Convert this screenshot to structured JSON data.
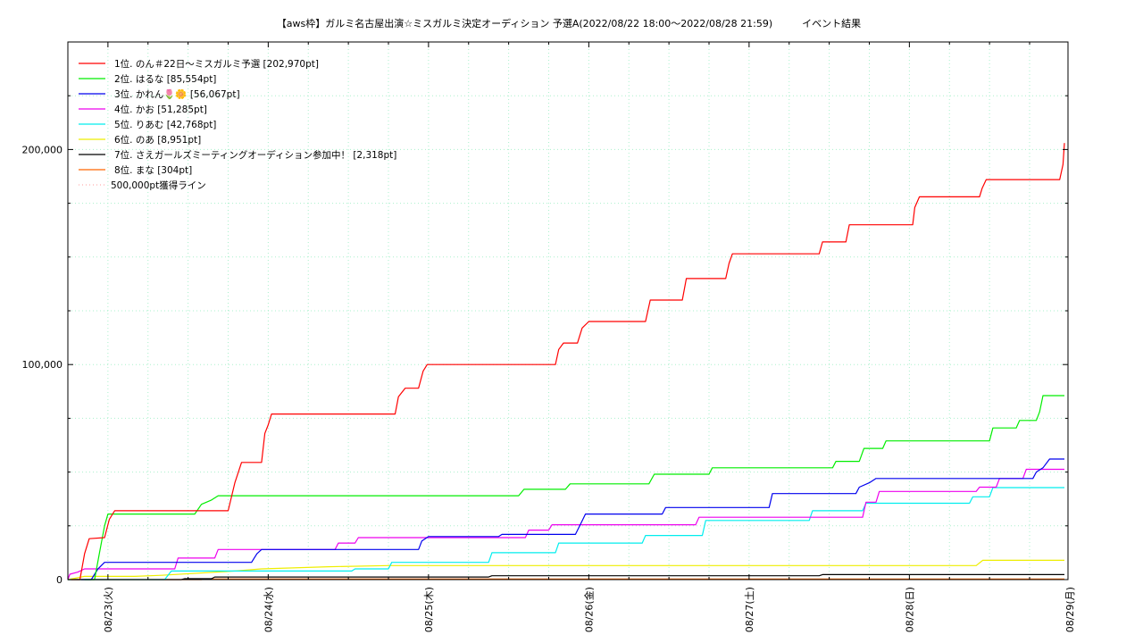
{
  "chart_data": {
    "type": "line",
    "title": "【aws枠】ガルミ名古屋出演☆ミスガルミ決定オーディション 予選A(2022/08/22 18:00～2022/08/28 21:59)　　　イベント結果",
    "xlabel": "",
    "ylabel": "",
    "ylim": [
      0,
      250000
    ],
    "xlim": [
      0,
      149.75
    ],
    "x_unit": "hours since 2022/08/22 18:00",
    "y_ticks": [
      {
        "value": 0,
        "label": "0"
      },
      {
        "value": 100000,
        "label": "100,000"
      },
      {
        "value": 200000,
        "label": "200,000"
      }
    ],
    "x_ticks": [
      {
        "value": 6,
        "label": "08/23(火)"
      },
      {
        "value": 30,
        "label": "08/24(水)"
      },
      {
        "value": 54,
        "label": "08/25(木)"
      },
      {
        "value": 78,
        "label": "08/26(金)"
      },
      {
        "value": 102,
        "label": "08/27(土)"
      },
      {
        "value": 126,
        "label": "08/28(日)"
      },
      {
        "value": 150,
        "label": "08/29(月)"
      }
    ],
    "grid": true,
    "legend_position": "top-left",
    "series": [
      {
        "name": "1位. のん＃22日〜ミスガルミ予選 [202,970pt]",
        "color": "#ff0000",
        "points": [
          [
            0.5,
            0
          ],
          [
            1.8,
            0
          ],
          [
            2.5,
            12000
          ],
          [
            3.2,
            19000
          ],
          [
            5.5,
            19500
          ],
          [
            6.2,
            28000
          ],
          [
            7,
            32000
          ],
          [
            24,
            32000
          ],
          [
            25,
            45000
          ],
          [
            26,
            54500
          ],
          [
            29,
            54500
          ],
          [
            29.5,
            68000
          ],
          [
            30,
            72000
          ],
          [
            30.5,
            77000
          ],
          [
            49,
            77000
          ],
          [
            49.5,
            85000
          ],
          [
            50.5,
            89000
          ],
          [
            52.5,
            89000
          ],
          [
            53.2,
            97000
          ],
          [
            53.8,
            100000
          ],
          [
            73,
            100000
          ],
          [
            73.5,
            107000
          ],
          [
            74.2,
            110000
          ],
          [
            76.3,
            110000
          ],
          [
            77,
            117000
          ],
          [
            78,
            120000
          ],
          [
            86.5,
            120000
          ],
          [
            87.2,
            130000
          ],
          [
            92,
            130000
          ],
          [
            92.6,
            140000
          ],
          [
            98.5,
            140000
          ],
          [
            99,
            147000
          ],
          [
            99.5,
            151500
          ],
          [
            112.5,
            151500
          ],
          [
            113,
            157000
          ],
          [
            116.5,
            157000
          ],
          [
            117,
            165000
          ],
          [
            126.5,
            165000
          ],
          [
            126.8,
            173000
          ],
          [
            127.5,
            178000
          ],
          [
            136.5,
            178000
          ],
          [
            136.9,
            182000
          ],
          [
            137.5,
            186000
          ],
          [
            148.5,
            186000
          ],
          [
            149,
            193000
          ],
          [
            149.5,
            202970
          ],
          [
            152,
            202970
          ]
        ]
      },
      {
        "name": "2位. はるな [85,554pt]",
        "color": "#00ee00",
        "points": [
          [
            2.5,
            0
          ],
          [
            4,
            0
          ],
          [
            4.7,
            12000
          ],
          [
            5.5,
            25000
          ],
          [
            6,
            30500
          ],
          [
            19,
            30500
          ],
          [
            20,
            35000
          ],
          [
            21.5,
            37000
          ],
          [
            22.5,
            39000
          ],
          [
            67.5,
            39000
          ],
          [
            68.3,
            42000
          ],
          [
            74.5,
            42000
          ],
          [
            75.2,
            44500
          ],
          [
            87,
            44500
          ],
          [
            87.8,
            49000
          ],
          [
            96,
            49000
          ],
          [
            96.5,
            52000
          ],
          [
            114.5,
            52000
          ],
          [
            115,
            55000
          ],
          [
            118.5,
            55000
          ],
          [
            119.2,
            61000
          ],
          [
            122,
            61000
          ],
          [
            122.5,
            64500
          ],
          [
            138,
            64500
          ],
          [
            138.5,
            70500
          ],
          [
            142,
            70500
          ],
          [
            142.5,
            74000
          ],
          [
            145,
            74000
          ],
          [
            145.5,
            78000
          ],
          [
            146,
            85554
          ],
          [
            152,
            85554
          ]
        ]
      },
      {
        "name": "3位. かれん🌷🌼 [56,067pt]",
        "color": "#0000ee",
        "points": [
          [
            2,
            0
          ],
          [
            3.5,
            0
          ],
          [
            4.5,
            5000
          ],
          [
            5.5,
            8000
          ],
          [
            27.5,
            8000
          ],
          [
            28.3,
            12000
          ],
          [
            29,
            14000
          ],
          [
            52.5,
            14000
          ],
          [
            53,
            18000
          ],
          [
            54,
            20000
          ],
          [
            64.5,
            20000
          ],
          [
            65,
            21000
          ],
          [
            76,
            21000
          ],
          [
            76.8,
            26000
          ],
          [
            77.5,
            30500
          ],
          [
            89,
            30500
          ],
          [
            89.5,
            33500
          ],
          [
            105,
            33500
          ],
          [
            105.5,
            40000
          ],
          [
            118,
            40000
          ],
          [
            118.5,
            43000
          ],
          [
            120,
            45000
          ],
          [
            121,
            47000
          ],
          [
            144.5,
            47000
          ],
          [
            145,
            50000
          ],
          [
            146,
            52000
          ],
          [
            147,
            56067
          ],
          [
            152,
            56067
          ]
        ]
      },
      {
        "name": "4位. かお [51,285pt]",
        "color": "#ee00ee",
        "points": [
          [
            0,
            0
          ],
          [
            0.3,
            2500
          ],
          [
            1.5,
            3500
          ],
          [
            2.5,
            5000
          ],
          [
            16,
            5000
          ],
          [
            16.5,
            10000
          ],
          [
            22,
            10000
          ],
          [
            22.5,
            14000
          ],
          [
            40,
            14000
          ],
          [
            40.5,
            17000
          ],
          [
            43,
            17000
          ],
          [
            43.5,
            19500
          ],
          [
            68.5,
            19500
          ],
          [
            69,
            23000
          ],
          [
            72,
            23000
          ],
          [
            72.5,
            25500
          ],
          [
            94,
            25500
          ],
          [
            94.5,
            29000
          ],
          [
            119,
            29000
          ],
          [
            119.5,
            36000
          ],
          [
            121,
            36000
          ],
          [
            121.5,
            41000
          ],
          [
            136,
            41000
          ],
          [
            136.5,
            43000
          ],
          [
            139,
            43000
          ],
          [
            139.5,
            47000
          ],
          [
            143,
            47000
          ],
          [
            143.5,
            51285
          ],
          [
            152,
            51285
          ]
        ]
      },
      {
        "name": "5位. りあむ [42,768pt]",
        "color": "#00eeee",
        "points": [
          [
            0,
            0
          ],
          [
            14.5,
            0
          ],
          [
            15.5,
            4000
          ],
          [
            21,
            4000
          ],
          [
            42.5,
            4000
          ],
          [
            43,
            5000
          ],
          [
            48,
            5000
          ],
          [
            48.5,
            8000
          ],
          [
            63,
            8000
          ],
          [
            63.5,
            12500
          ],
          [
            73,
            12500
          ],
          [
            73.5,
            17000
          ],
          [
            86,
            17000
          ],
          [
            86.5,
            20500
          ],
          [
            95,
            20500
          ],
          [
            95.5,
            27500
          ],
          [
            111,
            27500
          ],
          [
            111.5,
            32000
          ],
          [
            119,
            32000
          ],
          [
            119.5,
            35500
          ],
          [
            135,
            35500
          ],
          [
            135.5,
            38500
          ],
          [
            138,
            38500
          ],
          [
            138.5,
            42768
          ],
          [
            152,
            42768
          ]
        ]
      },
      {
        "name": "6位. のあ [8,951pt]",
        "color": "#eeee00",
        "points": [
          [
            0,
            0
          ],
          [
            2.5,
            1500
          ],
          [
            10,
            1500
          ],
          [
            14,
            2000
          ],
          [
            25,
            4000
          ],
          [
            29,
            5000
          ],
          [
            39,
            6000
          ],
          [
            48,
            6500
          ],
          [
            136,
            6500
          ],
          [
            137,
            8951
          ],
          [
            152,
            8951
          ]
        ]
      },
      {
        "name": "7位. さえガールズミーティングオーディション参加中！ [2,318pt]",
        "color": "#000000",
        "points": [
          [
            0,
            0
          ],
          [
            17,
            0
          ],
          [
            17.5,
            400
          ],
          [
            21.5,
            400
          ],
          [
            22,
            1200
          ],
          [
            63,
            1200
          ],
          [
            63.5,
            1800
          ],
          [
            112.5,
            1800
          ],
          [
            113,
            2318
          ],
          [
            152,
            2318
          ]
        ]
      },
      {
        "name": "8位. まな [304pt]",
        "color": "#ff6600",
        "points": [
          [
            0,
            0
          ],
          [
            20,
            0
          ],
          [
            20.5,
            304
          ],
          [
            152,
            304
          ]
        ]
      }
    ],
    "reference_line": {
      "name": "500,000pt獲得ライン",
      "value": 500000,
      "color": "#ff9999",
      "style": "dotted"
    }
  }
}
